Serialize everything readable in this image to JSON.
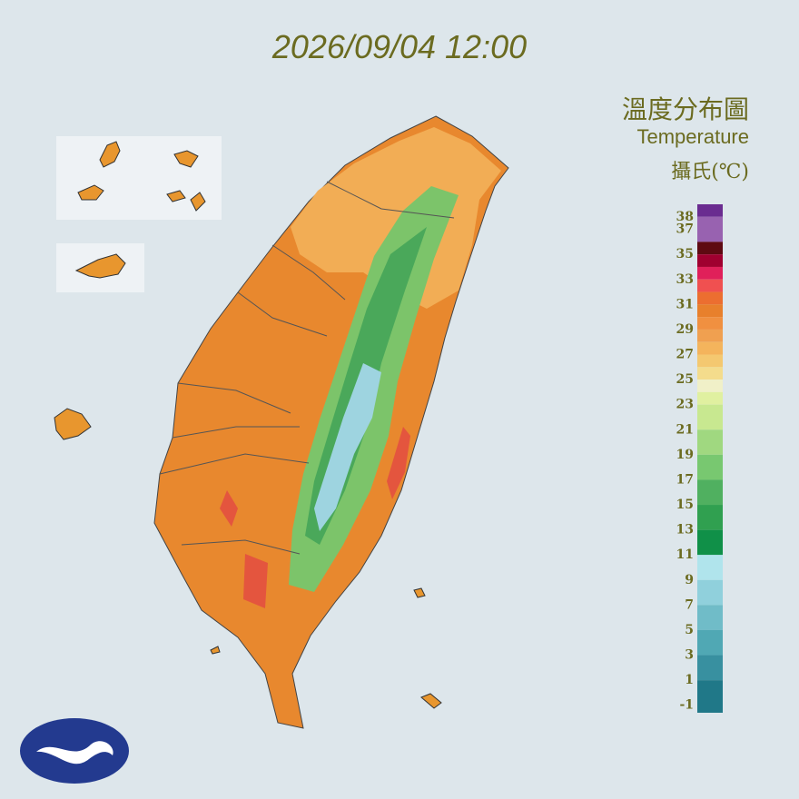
{
  "title": "2026/09/04 12:00",
  "legend": {
    "title": "溫度分布圖",
    "subtitle": "Temperature",
    "unit": "攝氏(℃)",
    "range": [
      -1.6,
      39
    ],
    "ticks": [
      38,
      37,
      35,
      33,
      31,
      29,
      27,
      25,
      23,
      21,
      19,
      17,
      15,
      13,
      11,
      9,
      7,
      5,
      3,
      1,
      -1
    ],
    "bands": [
      {
        "from": 38,
        "to": 39,
        "color": "#6a2c90"
      },
      {
        "from": 36,
        "to": 38,
        "color": "#9862b0"
      },
      {
        "from": 35,
        "to": 36,
        "color": "#5e0a12"
      },
      {
        "from": 34,
        "to": 35,
        "color": "#a00030"
      },
      {
        "from": 33,
        "to": 34,
        "color": "#e0205a"
      },
      {
        "from": 32,
        "to": 33,
        "color": "#f05050"
      },
      {
        "from": 31,
        "to": 32,
        "color": "#ec6e30"
      },
      {
        "from": 30,
        "to": 31,
        "color": "#e8802c"
      },
      {
        "from": 29,
        "to": 30,
        "color": "#f09040"
      },
      {
        "from": 28,
        "to": 29,
        "color": "#f0a050"
      },
      {
        "from": 27,
        "to": 28,
        "color": "#f4b45c"
      },
      {
        "from": 26,
        "to": 27,
        "color": "#f4c870"
      },
      {
        "from": 25,
        "to": 26,
        "color": "#f4dc8c"
      },
      {
        "from": 24,
        "to": 25,
        "color": "#f0f0c8"
      },
      {
        "from": 23,
        "to": 24,
        "color": "#e0f0a0"
      },
      {
        "from": 21,
        "to": 23,
        "color": "#c8e890"
      },
      {
        "from": 19,
        "to": 21,
        "color": "#a0d880"
      },
      {
        "from": 17,
        "to": 19,
        "color": "#78c870"
      },
      {
        "from": 15,
        "to": 17,
        "color": "#50b060"
      },
      {
        "from": 13,
        "to": 15,
        "color": "#30a050"
      },
      {
        "from": 11,
        "to": 13,
        "color": "#109048"
      },
      {
        "from": 9,
        "to": 11,
        "color": "#b0e4ec"
      },
      {
        "from": 7,
        "to": 9,
        "color": "#90d0dc"
      },
      {
        "from": 5,
        "to": 7,
        "color": "#70bcc8"
      },
      {
        "from": 3,
        "to": 5,
        "color": "#50a8b4"
      },
      {
        "from": 1,
        "to": 3,
        "color": "#3890a0"
      },
      {
        "from": -1.6,
        "to": 1,
        "color": "#207888"
      }
    ]
  }
}
